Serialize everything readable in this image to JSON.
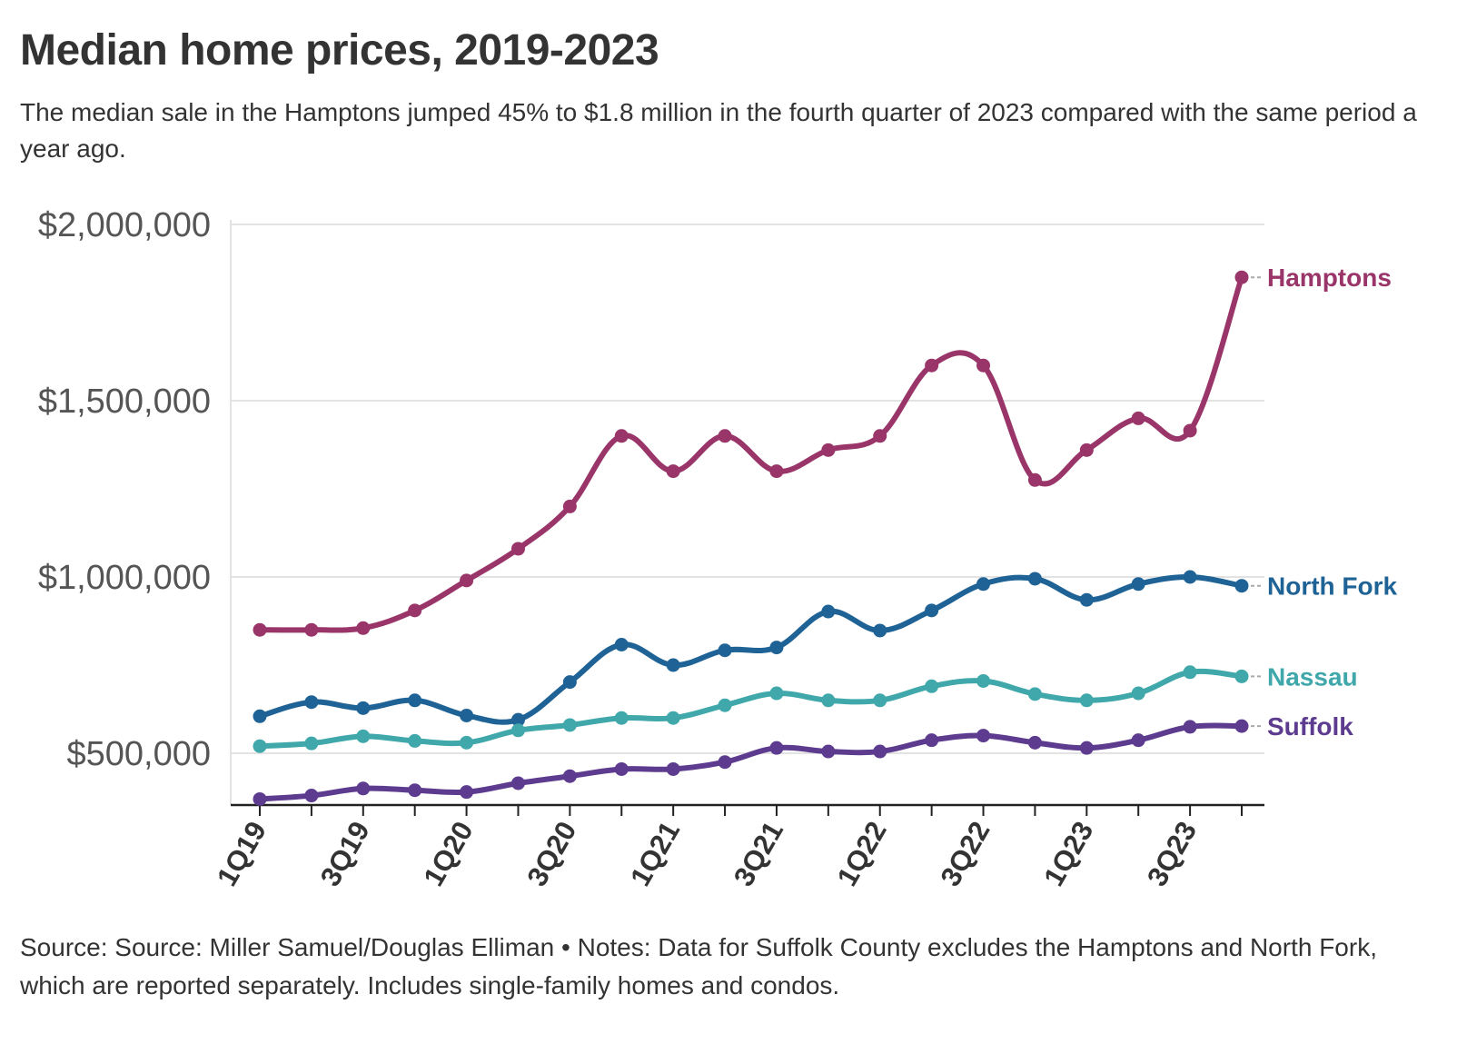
{
  "title": "Median home prices, 2019-2023",
  "subtitle": "The median sale in the Hamptons jumped 45% to $1.8 million in the fourth quarter of 2023 compared with the same period a year ago.",
  "footer": "Source: Source: Miller Samuel/Douglas Elliman • Notes: Data for Suffolk County excludes the Hamptons and North Fork, which are reported separately. Includes single-family homes and condos.",
  "chart_data": {
    "type": "line",
    "title": "Median home prices, 2019-2023",
    "xlabel": "",
    "ylabel": "",
    "ylim": [
      350000,
      2000000
    ],
    "yticks": [
      500000,
      1000000,
      1500000,
      2000000
    ],
    "ytick_labels": [
      "$500,000",
      "$1,000,000",
      "$1,500,000",
      "$2,000,000"
    ],
    "x": [
      "1Q19",
      "2Q19",
      "3Q19",
      "4Q19",
      "1Q20",
      "2Q20",
      "3Q20",
      "4Q20",
      "1Q21",
      "2Q21",
      "3Q21",
      "4Q21",
      "1Q22",
      "2Q22",
      "3Q22",
      "4Q22",
      "1Q23",
      "2Q23",
      "3Q23",
      "4Q23"
    ],
    "xtick_labels": [
      "1Q19",
      "3Q19",
      "1Q20",
      "3Q20",
      "1Q21",
      "3Q21",
      "1Q22",
      "3Q22",
      "1Q23",
      "3Q23"
    ],
    "grid": true,
    "legend": "direct labels at right",
    "series": [
      {
        "name": "Hamptons",
        "color": "#993569",
        "values": [
          850000,
          850000,
          855000,
          905000,
          990000,
          1080000,
          1200000,
          1400000,
          1300000,
          1400000,
          1300000,
          1360000,
          1400000,
          1600000,
          1600000,
          1275000,
          1360000,
          1450000,
          1415000,
          1850000
        ]
      },
      {
        "name": "North Fork",
        "color": "#1F6396",
        "values": [
          605000,
          645000,
          628000,
          650000,
          607000,
          595000,
          702000,
          808000,
          750000,
          792000,
          800000,
          902000,
          848000,
          905000,
          980000,
          995000,
          935000,
          980000,
          1000000,
          975000
        ]
      },
      {
        "name": "Nassau",
        "color": "#40A8AA",
        "values": [
          520000,
          528000,
          548000,
          535000,
          530000,
          565000,
          580000,
          600000,
          600000,
          636000,
          670000,
          650000,
          650000,
          690000,
          705000,
          668000,
          650000,
          670000,
          730000,
          718000
        ]
      },
      {
        "name": "Suffolk",
        "color": "#5D3B8F",
        "values": [
          370000,
          380000,
          400000,
          395000,
          390000,
          415000,
          435000,
          455000,
          455000,
          475000,
          515000,
          505000,
          505000,
          537000,
          550000,
          530000,
          515000,
          537000,
          575000,
          577000
        ]
      }
    ]
  }
}
